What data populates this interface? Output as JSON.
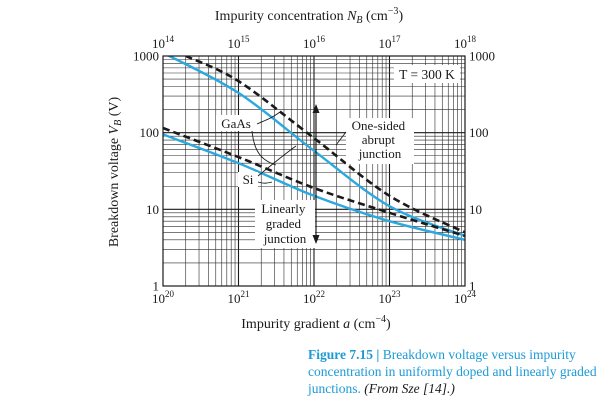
{
  "chart_data": {
    "type": "line",
    "title": "",
    "top_axis": {
      "label_prefix": "Impurity concentration",
      "label_var": "N",
      "label_sub": "B",
      "label_unit": "(cm",
      "label_exp": "−3",
      "label_close": ")",
      "scale": "log",
      "range": [
        100000000000000.0,
        1e+18
      ],
      "ticks": [
        {
          "base": "10",
          "exp": "14"
        },
        {
          "base": "10",
          "exp": "15"
        },
        {
          "base": "10",
          "exp": "16"
        },
        {
          "base": "10",
          "exp": "17"
        },
        {
          "base": "10",
          "exp": "18"
        }
      ]
    },
    "bottom_axis": {
      "label_prefix": "Impurity gradient",
      "label_var": "a",
      "label_unit": "(cm",
      "label_exp": "−4",
      "label_close": ")",
      "scale": "log",
      "range": [
        1e+20,
        1e+24
      ],
      "ticks": [
        {
          "base": "10",
          "exp": "20"
        },
        {
          "base": "10",
          "exp": "21"
        },
        {
          "base": "10",
          "exp": "22"
        },
        {
          "base": "10",
          "exp": "23"
        },
        {
          "base": "10",
          "exp": "24"
        }
      ]
    },
    "y_axis": {
      "label_prefix": "Breakdown voltage",
      "label_var": "V",
      "label_sub": "B",
      "label_unit": "(V)",
      "scale": "log",
      "range": [
        1,
        1000
      ],
      "ticks_left": [
        "1000",
        "100",
        "10",
        "1"
      ],
      "ticks_right": [
        "1000",
        "100",
        "10",
        "1"
      ]
    },
    "temperature_label": "T = 300 K",
    "annotations": {
      "gaas": "GaAs",
      "si": "Si",
      "one_sided": [
        "One-sided",
        "abrupt",
        "junction"
      ],
      "linearly": [
        "Linearly",
        "graded",
        "junction"
      ]
    },
    "series": [
      {
        "label": "Si",
        "junction": "one-sided abrupt",
        "style": "solid",
        "color": "#2aa8e0",
        "x": [
          100000000000000.0,
          1000000000000000.0,
          1e+16,
          1e+17,
          1e+18
        ],
        "y": [
          1100,
          330,
          58,
          11,
          4.5
        ]
      },
      {
        "label": "GaAs",
        "junction": "one-sided abrupt",
        "style": "dashed",
        "color": "#1a1a1a",
        "x": [
          200000000000000.0,
          1000000000000000.0,
          1e+16,
          1e+17,
          1e+18
        ],
        "y": [
          1000,
          470,
          85,
          15,
          5
        ]
      },
      {
        "label": "Si",
        "junction": "linearly graded",
        "style": "solid",
        "color": "#2aa8e0",
        "x": [
          1e+20,
          1e+21,
          1e+22,
          1e+23,
          1e+24
        ],
        "y": [
          95,
          40,
          15,
          7,
          4
        ]
      },
      {
        "label": "GaAs",
        "junction": "linearly graded",
        "style": "dashed",
        "color": "#1a1a1a",
        "x": [
          1e+20,
          1e+21,
          1e+22,
          1e+23,
          1e+24
        ],
        "y": [
          115,
          48,
          19,
          9,
          4.5
        ]
      }
    ]
  },
  "caption": {
    "number": "Figure 7.15 | ",
    "title": "Breakdown voltage versus impurity concentration in uniformly doped and linearly graded junctions.",
    "source": "(From Sze [14].)"
  }
}
